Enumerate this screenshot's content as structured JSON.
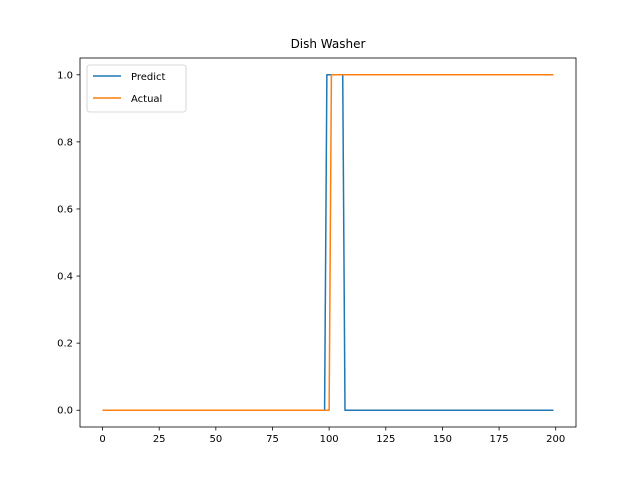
{
  "chart_data": {
    "type": "line",
    "title": "Dish Washer",
    "xlabel": "",
    "ylabel": "",
    "xlim": [
      -9.95,
      208.95
    ],
    "ylim": [
      -0.05,
      1.05
    ],
    "xticks": [
      0,
      25,
      50,
      75,
      100,
      125,
      150,
      175,
      200
    ],
    "yticks": [
      0.0,
      0.2,
      0.4,
      0.6,
      0.8,
      1.0
    ],
    "xtick_labels": [
      "0",
      "25",
      "50",
      "75",
      "100",
      "125",
      "150",
      "175",
      "200"
    ],
    "ytick_labels": [
      "0.0",
      "0.2",
      "0.4",
      "0.6",
      "0.8",
      "1.0"
    ],
    "grid": false,
    "legend_position": "top-left",
    "series": [
      {
        "name": "Predict",
        "color": "#1f77b4",
        "x": [
          0,
          98,
          99,
          106,
          107,
          199
        ],
        "y": [
          0,
          0,
          1,
          1,
          0,
          0
        ]
      },
      {
        "name": "Actual",
        "color": "#ff7f0e",
        "x": [
          0,
          100,
          101,
          199
        ],
        "y": [
          0,
          0,
          1,
          1
        ]
      }
    ]
  }
}
